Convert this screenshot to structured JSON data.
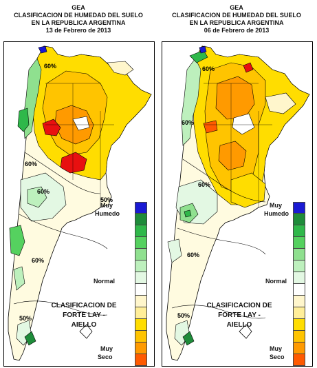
{
  "panels": [
    {
      "header": "GEA",
      "title_line1": "CLASIFICACION DE HUMEDAD DEL SUELO",
      "title_line2": "EN LA REPUBLICA ARGENTINA",
      "date": "13 de Febrero de 2013",
      "contour_labels": [
        "60%",
        "60%",
        "60%",
        "50%",
        "60%",
        "50%"
      ]
    },
    {
      "header": "GEA",
      "title_line1": "CLASIFICACION DE HUMEDAD DEL SUELO",
      "title_line2": "EN LA REPUBLICA ARGENTINA",
      "date": "06 de Febrero de 2013",
      "contour_labels": [
        "60%",
        "60%",
        "60%",
        "60%",
        "50%"
      ]
    }
  ],
  "legend": {
    "top_label_1": "Muy",
    "top_label_2": "Humedo",
    "mid_label": "Normal",
    "bottom_label_1": "Muy",
    "bottom_label_2": "Seco",
    "classification_title_1": "CLASIFICACION DE",
    "classification_title_2": "FORTE LAY - AIELLO",
    "scale_colors": [
      "#1a1ad4",
      "#1e8c3a",
      "#2fb84a",
      "#55d15f",
      "#8fe08f",
      "#bdf0bd",
      "#e3f8e3",
      "#ffffff",
      "#fff6cc",
      "#ffee99",
      "#ffdd00",
      "#ffc400",
      "#ff9a00",
      "#ff5a00",
      "#e81010"
    ]
  }
}
